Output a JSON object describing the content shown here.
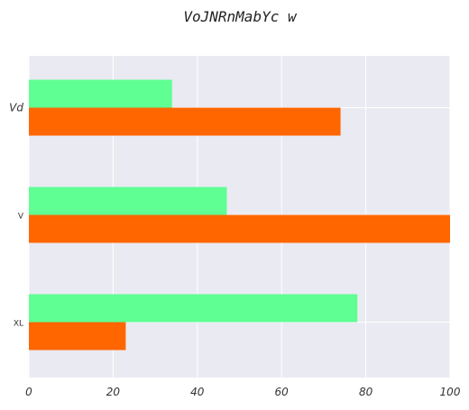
{
  "chart_data": {
    "type": "bar",
    "orientation": "horizontal",
    "title": "VoJNRnMabYc w",
    "xlabel": "",
    "ylabel": "",
    "categories": [
      "Vd",
      "V",
      "XL"
    ],
    "series": [
      {
        "values": [
          34,
          47,
          78
        ],
        "color": "#5fff94"
      },
      {
        "values": [
          74,
          100,
          23
        ],
        "color": "#ff6600"
      }
    ],
    "xlim": [
      0,
      100
    ],
    "xticks": [
      0,
      20,
      40,
      60,
      80,
      100
    ],
    "xtick_labels": [
      "0",
      "20",
      "40",
      "60",
      "80",
      "100"
    ],
    "grid": true,
    "legend": "none",
    "background_color": "#eaeaf2",
    "grid_color": "#ffffff"
  }
}
